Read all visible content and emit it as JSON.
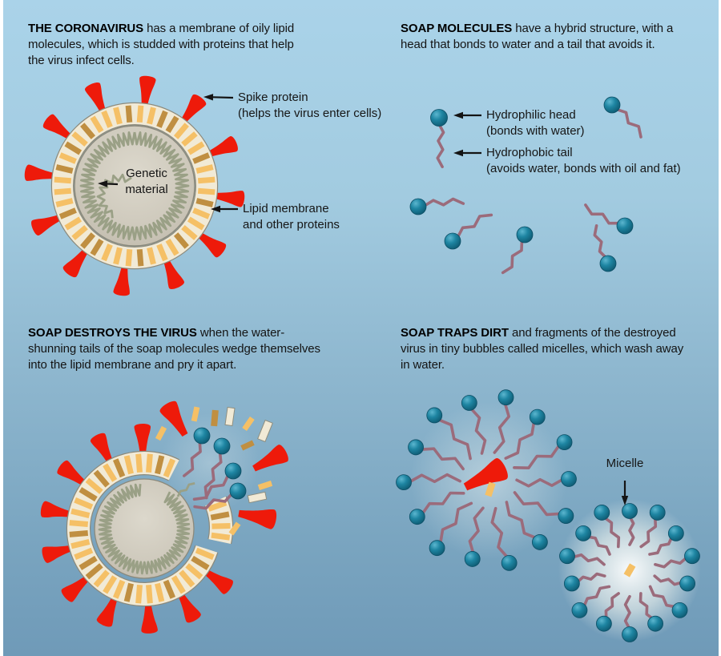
{
  "panels": {
    "coronavirus": {
      "lead": "THE CORONAVIRUS",
      "rest": " has a membrane of oily lipid molecules, which is studded with proteins that help the virus infect cells."
    },
    "soap_molecules": {
      "lead": "SOAP MOLECULES",
      "rest": " have a hybrid structure, with a head that bonds to water and a tail that avoids it."
    },
    "soap_destroys": {
      "lead": "SOAP DESTROYS THE VIRUS",
      "rest": " when the water-shunning tails of the soap molecules wedge themselves into the lipid membrane and pry it apart."
    },
    "soap_traps": {
      "lead": "SOAP TRAPS DIRT",
      "rest": " and fragments of the destroyed virus in tiny bubbles called micelles, which wash away in water."
    }
  },
  "labels": {
    "spike_protein": "Spike protein",
    "spike_protein_sub": "(helps the virus enter cells)",
    "genetic_material": "Genetic material",
    "lipid_membrane": "Lipid membrane",
    "lipid_membrane_sub": "and other proteins",
    "hydrophilic_head": "Hydrophilic head",
    "hydrophilic_head_sub": "(bonds with water)",
    "hydrophobic_tail": "Hydrophobic tail",
    "hydrophobic_tail_sub": "(avoids water, bonds with oil and fat)",
    "micelle": "Micelle"
  },
  "palette": {
    "bg_top": "#aad3e9",
    "bg_bottom": "#6f9ab8",
    "frame": "#ffffff",
    "red": "#ee1a0a",
    "cream": "#f1ead6",
    "tick_light": "#f5c066",
    "tick_dark": "#c08f41",
    "outline": "#8b897b",
    "core_light": "#dcd8cc",
    "core_dark": "#c2bcae",
    "rna": "#9aa086",
    "soap_head": "#1e85a2",
    "soap_head_dark": "#0e5a72",
    "soap_head_light": "#5cb6cf",
    "soap_tail": "#9b6b7b",
    "text": "#141414"
  }
}
